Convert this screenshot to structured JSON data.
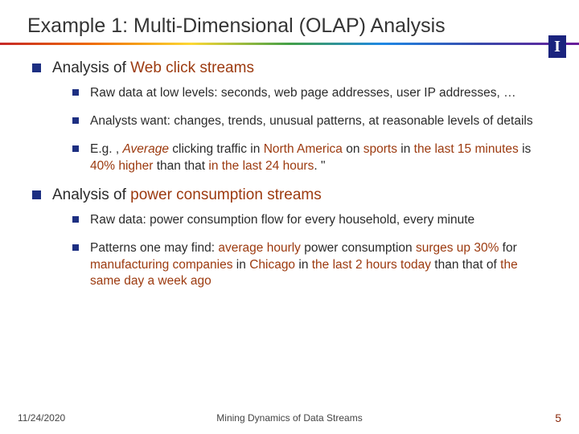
{
  "title": "Example 1: Multi-Dimensional (OLAP) Analysis",
  "logo_letter": "I",
  "section1": {
    "heading_pre": "Analysis of ",
    "heading_hl": "Web click streams",
    "items": {
      "a": "Raw data at low levels: seconds, web page addresses, user IP addresses, …",
      "b": "Analysts want: changes, trends, unusual patterns, at reasonable levels of details",
      "c": {
        "t1": "E.g. , ",
        "t2": "Average",
        "t3": " clicking traffic in ",
        "t4": "North America",
        "t5": " on ",
        "t6": "sports",
        "t7": " in ",
        "t8": "the last 15 minutes",
        "t9": " is ",
        "t10": "40% higher",
        "t11": " than that ",
        "t12": "in the last 24 hours",
        "t13": ". \""
      }
    }
  },
  "section2": {
    "heading_pre": "Analysis of ",
    "heading_hl": "power consumption streams",
    "items": {
      "a": "Raw data: power consumption flow for every household, every minute",
      "b": {
        "t1": "Patterns one may find: ",
        "t2": "average hourly",
        "t3": " power consumption ",
        "t4": "surges up 30%",
        "t5": " for ",
        "t6": "manufacturing companies",
        "t7": " in ",
        "t8": "Chicago",
        "t9": " in ",
        "t10": "the last 2 hours today",
        "t11": " than that of ",
        "t12": "the same day a week ago"
      }
    }
  },
  "footer": {
    "date": "11/24/2020",
    "title": "Mining Dynamics of Data Streams",
    "page": "5"
  },
  "colors": {
    "bullet": "#1d2f82",
    "highlight": "#9c3a0f",
    "title_text": "#343434",
    "logo_bg": "#1a237e",
    "page_num": "#8a2a0c"
  }
}
